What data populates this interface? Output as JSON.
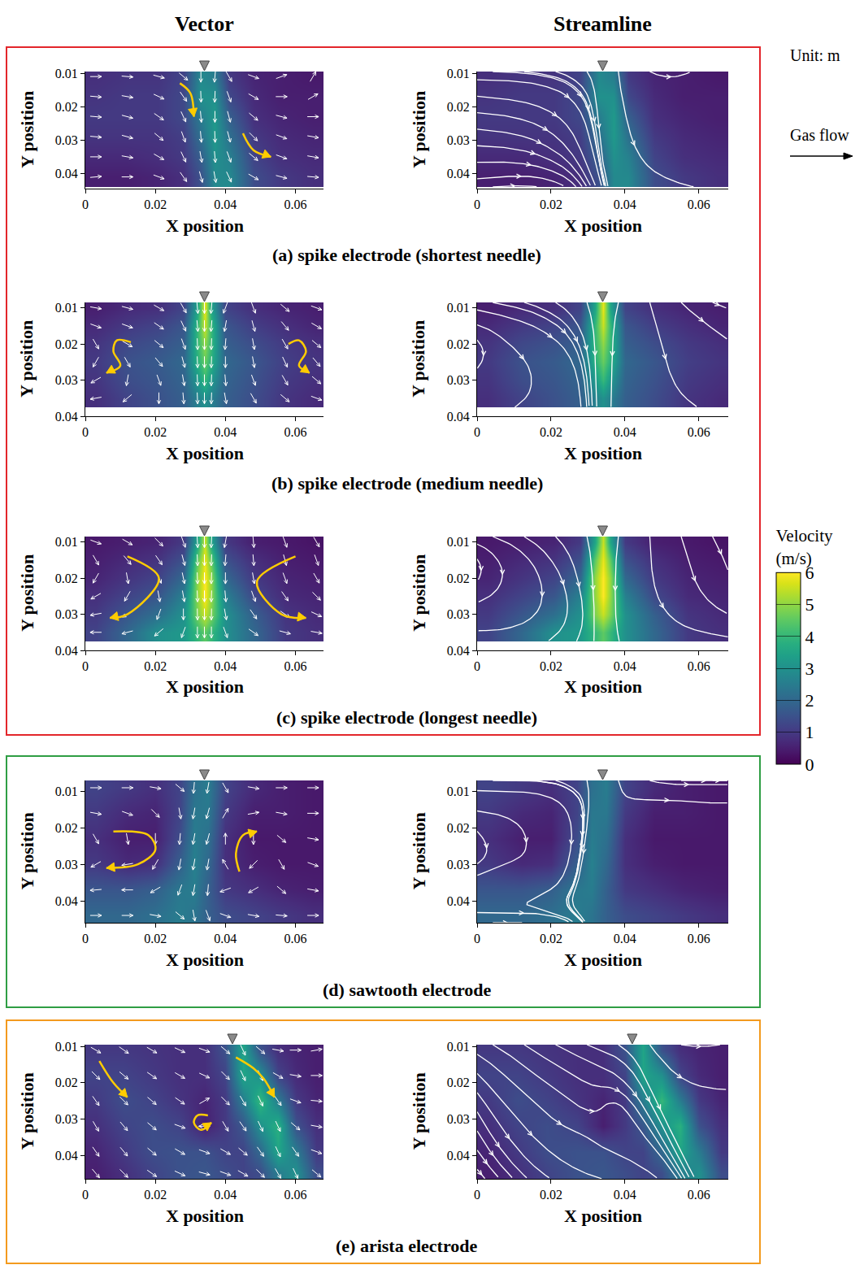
{
  "column_titles": [
    "Vector",
    "Streamline"
  ],
  "unit_note": "Unit: m",
  "flow_label": "Gas flow",
  "colorbar": {
    "title": "Velocity (m/s)",
    "range": [
      0,
      6
    ],
    "ticks": [
      0,
      1,
      2,
      3,
      4,
      5,
      6
    ]
  },
  "chart_data": [
    {
      "type": "heatmap",
      "title": "(a) spike electrode (shortest needle)",
      "xlabel": "X position",
      "ylabel": "Y position",
      "xlim": [
        0,
        0.068
      ],
      "xticks": [
        0,
        0.02,
        0.04,
        0.06
      ],
      "ylim": [
        0.0095,
        0.0445
      ],
      "yticks": [
        0.01,
        0.02,
        0.03,
        0.04
      ],
      "color": "#e3262b",
      "needle_x": 0.034,
      "x": [
        0.003,
        0.012,
        0.021,
        0.028,
        0.033,
        0.037,
        0.041,
        0.048,
        0.056,
        0.065
      ],
      "y": [
        0.011,
        0.017,
        0.023,
        0.029,
        0.035,
        0.041
      ],
      "speed": [
        [
          0.8,
          0.9,
          0.9,
          1.2,
          2.8,
          2.5,
          1.0,
          0.6,
          0.5,
          0.4
        ],
        [
          0.9,
          1.0,
          1.0,
          1.3,
          3.0,
          3.0,
          1.3,
          0.7,
          0.5,
          0.5
        ],
        [
          1.0,
          1.0,
          1.0,
          1.3,
          2.5,
          3.2,
          1.8,
          0.8,
          0.6,
          0.5
        ],
        [
          0.9,
          0.9,
          0.9,
          1.1,
          2.2,
          3.2,
          2.2,
          1.0,
          0.7,
          0.6
        ],
        [
          0.7,
          0.7,
          0.8,
          1.0,
          1.8,
          3.0,
          2.6,
          1.2,
          0.8,
          0.7
        ],
        [
          0.5,
          0.5,
          0.6,
          0.8,
          1.5,
          2.8,
          2.8,
          1.4,
          1.0,
          0.8
        ]
      ],
      "direction": [
        [
          0,
          5,
          15,
          40,
          90,
          95,
          60,
          20,
          -20,
          -60
        ],
        [
          5,
          10,
          25,
          55,
          88,
          92,
          70,
          30,
          0,
          -30
        ],
        [
          5,
          15,
          35,
          65,
          85,
          90,
          75,
          40,
          15,
          0
        ],
        [
          5,
          15,
          40,
          70,
          85,
          88,
          75,
          45,
          20,
          10
        ],
        [
          0,
          10,
          30,
          65,
          80,
          85,
          70,
          40,
          20,
          10
        ],
        [
          -5,
          0,
          20,
          55,
          75,
          80,
          65,
          30,
          15,
          5
        ]
      ],
      "arrows": [
        {
          "path": [
            [
              0.027,
              0.013
            ],
            [
              0.03,
              0.016
            ],
            [
              0.031,
              0.023
            ]
          ]
        },
        {
          "path": [
            [
              0.045,
              0.028
            ],
            [
              0.048,
              0.033
            ],
            [
              0.053,
              0.035
            ]
          ]
        }
      ]
    },
    {
      "type": "heatmap",
      "title": "(b) spike electrode (medium needle)",
      "xlabel": "X position",
      "ylabel": "Y position",
      "xlim": [
        0,
        0.068
      ],
      "xticks": [
        0,
        0.02,
        0.04,
        0.06
      ],
      "ylim": [
        0.0085,
        0.04
      ],
      "yticks": [
        0.01,
        0.02,
        0.03,
        0.04
      ],
      "color": "#e3262b",
      "needle_x": 0.034,
      "x": [
        0.003,
        0.012,
        0.021,
        0.028,
        0.032,
        0.034,
        0.036,
        0.04,
        0.048,
        0.057,
        0.066
      ],
      "y": [
        0.01,
        0.015,
        0.02,
        0.025,
        0.03,
        0.035
      ],
      "speed": [
        [
          0.5,
          0.7,
          0.8,
          1.2,
          3.5,
          5.8,
          3.5,
          1.2,
          0.8,
          0.6,
          0.5
        ],
        [
          0.7,
          1.0,
          1.2,
          1.6,
          4.0,
          5.5,
          4.0,
          1.6,
          1.1,
          0.8,
          0.6
        ],
        [
          0.9,
          1.3,
          1.5,
          1.8,
          4.0,
          5.0,
          4.0,
          1.8,
          1.4,
          1.0,
          0.8
        ],
        [
          1.0,
          1.5,
          1.7,
          2.0,
          3.8,
          4.6,
          3.8,
          2.0,
          1.6,
          1.1,
          0.9
        ],
        [
          0.9,
          1.4,
          1.6,
          1.9,
          3.2,
          4.0,
          3.2,
          1.9,
          1.5,
          1.0,
          0.8
        ],
        [
          0.8,
          1.2,
          1.5,
          1.8,
          2.6,
          3.0,
          2.6,
          1.8,
          1.4,
          0.9,
          0.7
        ]
      ],
      "direction": [
        [
          10,
          15,
          30,
          60,
          85,
          90,
          95,
          110,
          70,
          40,
          20
        ],
        [
          20,
          20,
          35,
          65,
          85,
          90,
          95,
          100,
          75,
          50,
          30
        ],
        [
          60,
          30,
          40,
          70,
          88,
          90,
          92,
          95,
          80,
          60,
          40
        ],
        [
          120,
          60,
          50,
          75,
          88,
          90,
          92,
          90,
          80,
          65,
          50
        ],
        [
          150,
          100,
          70,
          80,
          88,
          90,
          92,
          85,
          70,
          60,
          40
        ],
        [
          170,
          140,
          90,
          85,
          88,
          90,
          92,
          80,
          60,
          40,
          20
        ]
      ],
      "arrows": [
        {
          "path": [
            [
              0.013,
              0.0195
            ],
            [
              0.009,
              0.019
            ],
            [
              0.008,
              0.022
            ],
            [
              0.01,
              0.026
            ],
            [
              0.006,
              0.028
            ]
          ]
        },
        {
          "path": [
            [
              0.058,
              0.02
            ],
            [
              0.061,
              0.019
            ],
            [
              0.063,
              0.022
            ],
            [
              0.061,
              0.026
            ],
            [
              0.064,
              0.028
            ]
          ]
        }
      ]
    },
    {
      "type": "heatmap",
      "title": "(c) spike electrode (longest needle)",
      "xlabel": "X position",
      "ylabel": "Y position",
      "xlim": [
        0,
        0.068
      ],
      "xticks": [
        0,
        0.02,
        0.04,
        0.06
      ],
      "ylim": [
        0.0085,
        0.04
      ],
      "yticks": [
        0.01,
        0.02,
        0.03,
        0.04
      ],
      "color": "#e3262b",
      "needle_x": 0.034,
      "x": [
        0.003,
        0.012,
        0.021,
        0.028,
        0.032,
        0.034,
        0.036,
        0.04,
        0.048,
        0.057,
        0.066
      ],
      "y": [
        0.01,
        0.015,
        0.02,
        0.025,
        0.03,
        0.035
      ],
      "speed": [
        [
          0.4,
          0.5,
          0.6,
          1.0,
          3.5,
          5.5,
          3.5,
          1.0,
          0.5,
          0.4,
          0.3
        ],
        [
          0.5,
          0.7,
          0.9,
          1.5,
          4.5,
          5.8,
          4.5,
          1.5,
          0.8,
          0.5,
          0.4
        ],
        [
          0.6,
          0.9,
          1.2,
          2.0,
          5.0,
          6.0,
          5.0,
          2.0,
          1.0,
          0.6,
          0.5
        ],
        [
          0.8,
          1.2,
          1.6,
          2.6,
          5.0,
          6.0,
          5.0,
          2.6,
          1.3,
          0.7,
          0.6
        ],
        [
          1.0,
          1.6,
          2.2,
          3.0,
          4.8,
          5.5,
          4.8,
          3.0,
          1.8,
          0.9,
          0.7
        ],
        [
          1.2,
          2.0,
          3.0,
          3.2,
          4.0,
          4.5,
          4.0,
          3.0,
          2.0,
          1.0,
          0.8
        ]
      ],
      "direction": [
        [
          20,
          30,
          45,
          70,
          87,
          90,
          93,
          100,
          85,
          70,
          60
        ],
        [
          60,
          50,
          55,
          75,
          88,
          90,
          92,
          95,
          85,
          75,
          70
        ],
        [
          120,
          80,
          65,
          78,
          88,
          90,
          92,
          90,
          80,
          70,
          60
        ],
        [
          150,
          120,
          80,
          80,
          88,
          90,
          92,
          85,
          70,
          55,
          45
        ],
        [
          170,
          150,
          110,
          90,
          89,
          90,
          91,
          80,
          55,
          35,
          25
        ],
        [
          180,
          165,
          140,
          110,
          90,
          90,
          90,
          70,
          35,
          15,
          10
        ]
      ],
      "arrows": [
        {
          "path": [
            [
              0.012,
              0.014
            ],
            [
              0.021,
              0.02
            ],
            [
              0.012,
              0.03
            ],
            [
              0.007,
              0.031
            ]
          ]
        },
        {
          "path": [
            [
              0.06,
              0.014
            ],
            [
              0.049,
              0.021
            ],
            [
              0.056,
              0.03
            ],
            [
              0.063,
              0.031
            ]
          ]
        }
      ]
    },
    {
      "type": "heatmap",
      "title": "(d) sawtooth electrode",
      "xlabel": "X position",
      "ylabel": "Y position",
      "xlim": [
        0,
        0.068
      ],
      "xticks": [
        0,
        0.02,
        0.04,
        0.06
      ],
      "ylim": [
        0.007,
        0.046
      ],
      "yticks": [
        0.01,
        0.02,
        0.03,
        0.04
      ],
      "color": "#2f9e44",
      "needle_x": 0.034,
      "x": [
        0.003,
        0.012,
        0.02,
        0.027,
        0.031,
        0.035,
        0.04,
        0.048,
        0.056,
        0.065
      ],
      "y": [
        0.009,
        0.016,
        0.023,
        0.03,
        0.037,
        0.044
      ],
      "speed": [
        [
          1.2,
          1.0,
          0.8,
          1.2,
          2.2,
          2.5,
          1.2,
          0.7,
          0.5,
          0.4
        ],
        [
          1.0,
          0.7,
          0.6,
          1.2,
          2.4,
          2.4,
          1.0,
          0.5,
          0.5,
          0.4
        ],
        [
          0.8,
          0.5,
          0.5,
          1.4,
          2.5,
          2.2,
          0.8,
          0.4,
          0.4,
          0.4
        ],
        [
          1.0,
          0.7,
          0.8,
          1.8,
          2.6,
          2.0,
          0.8,
          0.5,
          0.4,
          0.4
        ],
        [
          1.6,
          1.6,
          1.8,
          2.4,
          2.5,
          1.8,
          1.0,
          0.8,
          0.6,
          0.5
        ],
        [
          2.0,
          2.0,
          2.2,
          2.5,
          2.3,
          1.8,
          1.4,
          1.2,
          1.0,
          0.8
        ]
      ],
      "direction": [
        [
          0,
          0,
          10,
          40,
          95,
          100,
          60,
          10,
          0,
          0
        ],
        [
          10,
          20,
          45,
          80,
          100,
          105,
          -60,
          -10,
          10,
          0
        ],
        [
          60,
          80,
          90,
          95,
          100,
          105,
          -90,
          90,
          40,
          10
        ],
        [
          150,
          170,
          120,
          100,
          100,
          100,
          -120,
          135,
          60,
          20
        ],
        [
          175,
          180,
          150,
          110,
          100,
          95,
          160,
          150,
          40,
          10
        ],
        [
          0,
          0,
          10,
          40,
          80,
          70,
          20,
          10,
          5,
          0
        ]
      ],
      "arrows": [
        {
          "path": [
            [
              0.008,
              0.021
            ],
            [
              0.018,
              0.022
            ],
            [
              0.02,
              0.026
            ],
            [
              0.015,
              0.03
            ],
            [
              0.006,
              0.031
            ]
          ]
        },
        {
          "path": [
            [
              0.044,
              0.032
            ],
            [
              0.043,
              0.027
            ],
            [
              0.045,
              0.022
            ],
            [
              0.049,
              0.021
            ]
          ]
        }
      ]
    },
    {
      "type": "heatmap",
      "title": "(e) arista electrode",
      "xlabel": "X position",
      "ylabel": "Y position",
      "xlim": [
        0,
        0.068
      ],
      "xticks": [
        0,
        0.02,
        0.04,
        0.06
      ],
      "ylim": [
        0.0095,
        0.0465
      ],
      "yticks": [
        0.01,
        0.02,
        0.03,
        0.04
      ],
      "color": "#f39a1e",
      "needle_x": 0.042,
      "x": [
        0.003,
        0.011,
        0.019,
        0.027,
        0.034,
        0.04,
        0.045,
        0.05,
        0.055,
        0.06,
        0.066
      ],
      "y": [
        0.011,
        0.018,
        0.025,
        0.032,
        0.039,
        0.045
      ],
      "speed": [
        [
          1.0,
          1.0,
          0.9,
          0.8,
          0.8,
          1.5,
          3.5,
          1.5,
          0.8,
          0.6,
          0.5
        ],
        [
          1.2,
          1.2,
          1.0,
          0.8,
          0.8,
          1.2,
          3.5,
          3.0,
          1.2,
          0.7,
          0.5
        ],
        [
          1.0,
          1.4,
          1.2,
          0.9,
          0.6,
          1.0,
          2.5,
          4.0,
          2.5,
          1.0,
          0.6
        ],
        [
          0.8,
          1.2,
          1.4,
          1.2,
          0.5,
          1.0,
          1.6,
          3.0,
          3.8,
          1.5,
          0.8
        ],
        [
          0.6,
          1.0,
          1.4,
          1.5,
          1.5,
          1.2,
          1.2,
          2.0,
          3.5,
          2.5,
          1.0
        ],
        [
          0.5,
          0.8,
          1.2,
          1.5,
          1.6,
          1.4,
          1.2,
          1.4,
          2.5,
          3.0,
          1.4
        ]
      ],
      "direction": [
        [
          30,
          35,
          30,
          25,
          20,
          40,
          65,
          40,
          10,
          0,
          -10
        ],
        [
          45,
          40,
          35,
          30,
          25,
          45,
          65,
          65,
          30,
          10,
          0
        ],
        [
          55,
          45,
          40,
          35,
          -30,
          45,
          60,
          65,
          55,
          20,
          5
        ],
        [
          60,
          50,
          40,
          20,
          180,
          60,
          55,
          65,
          65,
          40,
          10
        ],
        [
          55,
          50,
          40,
          30,
          20,
          30,
          40,
          55,
          65,
          55,
          20
        ],
        [
          50,
          45,
          35,
          25,
          15,
          20,
          30,
          45,
          60,
          65,
          40
        ]
      ],
      "arrows": [
        {
          "path": [
            [
              0.004,
              0.014
            ],
            [
              0.008,
              0.02
            ],
            [
              0.012,
              0.024
            ]
          ]
        },
        {
          "path": [
            [
              0.043,
              0.013
            ],
            [
              0.048,
              0.016
            ],
            [
              0.051,
              0.019
            ],
            [
              0.054,
              0.024
            ]
          ]
        },
        {
          "path": [
            [
              0.035,
              0.029
            ],
            [
              0.032,
              0.029
            ],
            [
              0.031,
              0.031
            ],
            [
              0.033,
              0.033
            ],
            [
              0.036,
              0.031
            ]
          ]
        }
      ]
    }
  ]
}
